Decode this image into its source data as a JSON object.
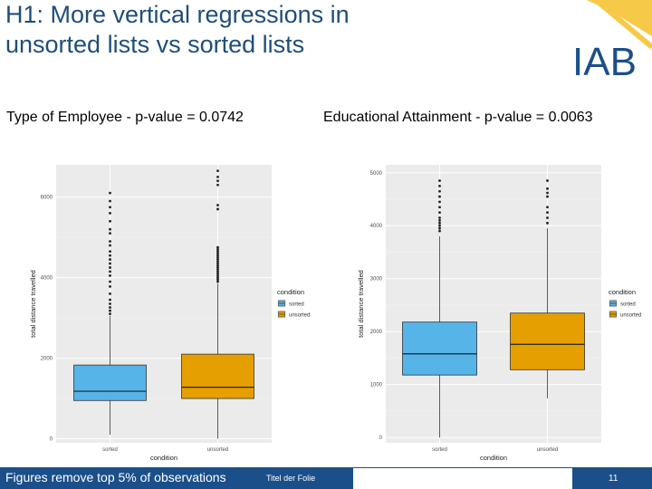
{
  "slide": {
    "title_line1": "H1: More vertical regressions in",
    "title_line2": "unsorted lists vs sorted lists",
    "logo_text": "IAB",
    "subtitle_left": "Type of Employee - p-value = 0.0742",
    "subtitle_right": "Educational Attainment - p-value = 0.0063",
    "footer_note": "Figures remove top 5% of observations",
    "footer_title": "Titel der Folie",
    "page_number": "11"
  },
  "colors": {
    "title": "#1f4e79",
    "footer": "#1b4f8a",
    "sorted": "#56b4e9",
    "unsorted": "#e69f00",
    "panel": "#ebebeb",
    "logo_blue": "#1b4f8a",
    "logo_yellow": "#f7c948"
  },
  "chart_data": [
    {
      "type": "boxplot",
      "xlabel": "condition",
      "ylabel": "total distance travelled",
      "categories": [
        "sorted",
        "unsorted"
      ],
      "ylim": [
        -100,
        6800
      ],
      "yticks": [
        0,
        2000,
        4000,
        6000
      ],
      "ytick_labels": [
        "0",
        "2000",
        "4000",
        "6000"
      ],
      "legend": {
        "title": "condition",
        "entries": [
          "sorted",
          "unsorted"
        ],
        "position": "right"
      },
      "grid": true,
      "boxes": [
        {
          "name": "sorted",
          "whisker_low": 100,
          "q1": 950,
          "median": 1180,
          "q3": 1830,
          "whisker_high": 3050,
          "outliers": [
            3100,
            3180,
            3260,
            3350,
            3450,
            3600,
            3780,
            3900,
            4050,
            4150,
            4250,
            4350,
            4450,
            4550,
            4650,
            4800,
            4900,
            5100,
            5200,
            5400,
            5600,
            5750,
            5900,
            6100
          ]
        },
        {
          "name": "unsorted",
          "whisker_low": 0,
          "q1": 1000,
          "median": 1280,
          "q3": 2100,
          "whisker_high": 3850,
          "outliers": [
            3900,
            3950,
            4000,
            4050,
            4100,
            4150,
            4200,
            4250,
            4300,
            4350,
            4400,
            4450,
            4500,
            4550,
            4600,
            4650,
            4700,
            4750,
            5700,
            5800,
            6300,
            6400,
            6500,
            6650
          ]
        }
      ]
    },
    {
      "type": "boxplot",
      "xlabel": "condition",
      "ylabel": "total distance travelled",
      "categories": [
        "sorted",
        "unsorted"
      ],
      "ylim": [
        -100,
        5150
      ],
      "yticks": [
        0,
        1000,
        2000,
        3000,
        4000,
        5000
      ],
      "ytick_labels": [
        "0",
        "1000",
        "2000",
        "3000",
        "4000",
        "5000"
      ],
      "legend": {
        "title": "condition",
        "entries": [
          "sorted",
          "unsorted"
        ],
        "position": "right"
      },
      "grid": true,
      "boxes": [
        {
          "name": "sorted",
          "whisker_low": 0,
          "q1": 1180,
          "median": 1580,
          "q3": 2180,
          "whisker_high": 3800,
          "outliers": [
            3900,
            3950,
            4000,
            4050,
            4100,
            4150,
            4250,
            4350,
            4450,
            4550,
            4650,
            4750,
            4850
          ]
        },
        {
          "name": "unsorted",
          "whisker_low": 740,
          "q1": 1280,
          "median": 1760,
          "q3": 2350,
          "whisker_high": 3950,
          "outliers": [
            4050,
            4150,
            4250,
            4350,
            4550,
            4620,
            4700,
            4850
          ]
        }
      ]
    }
  ]
}
